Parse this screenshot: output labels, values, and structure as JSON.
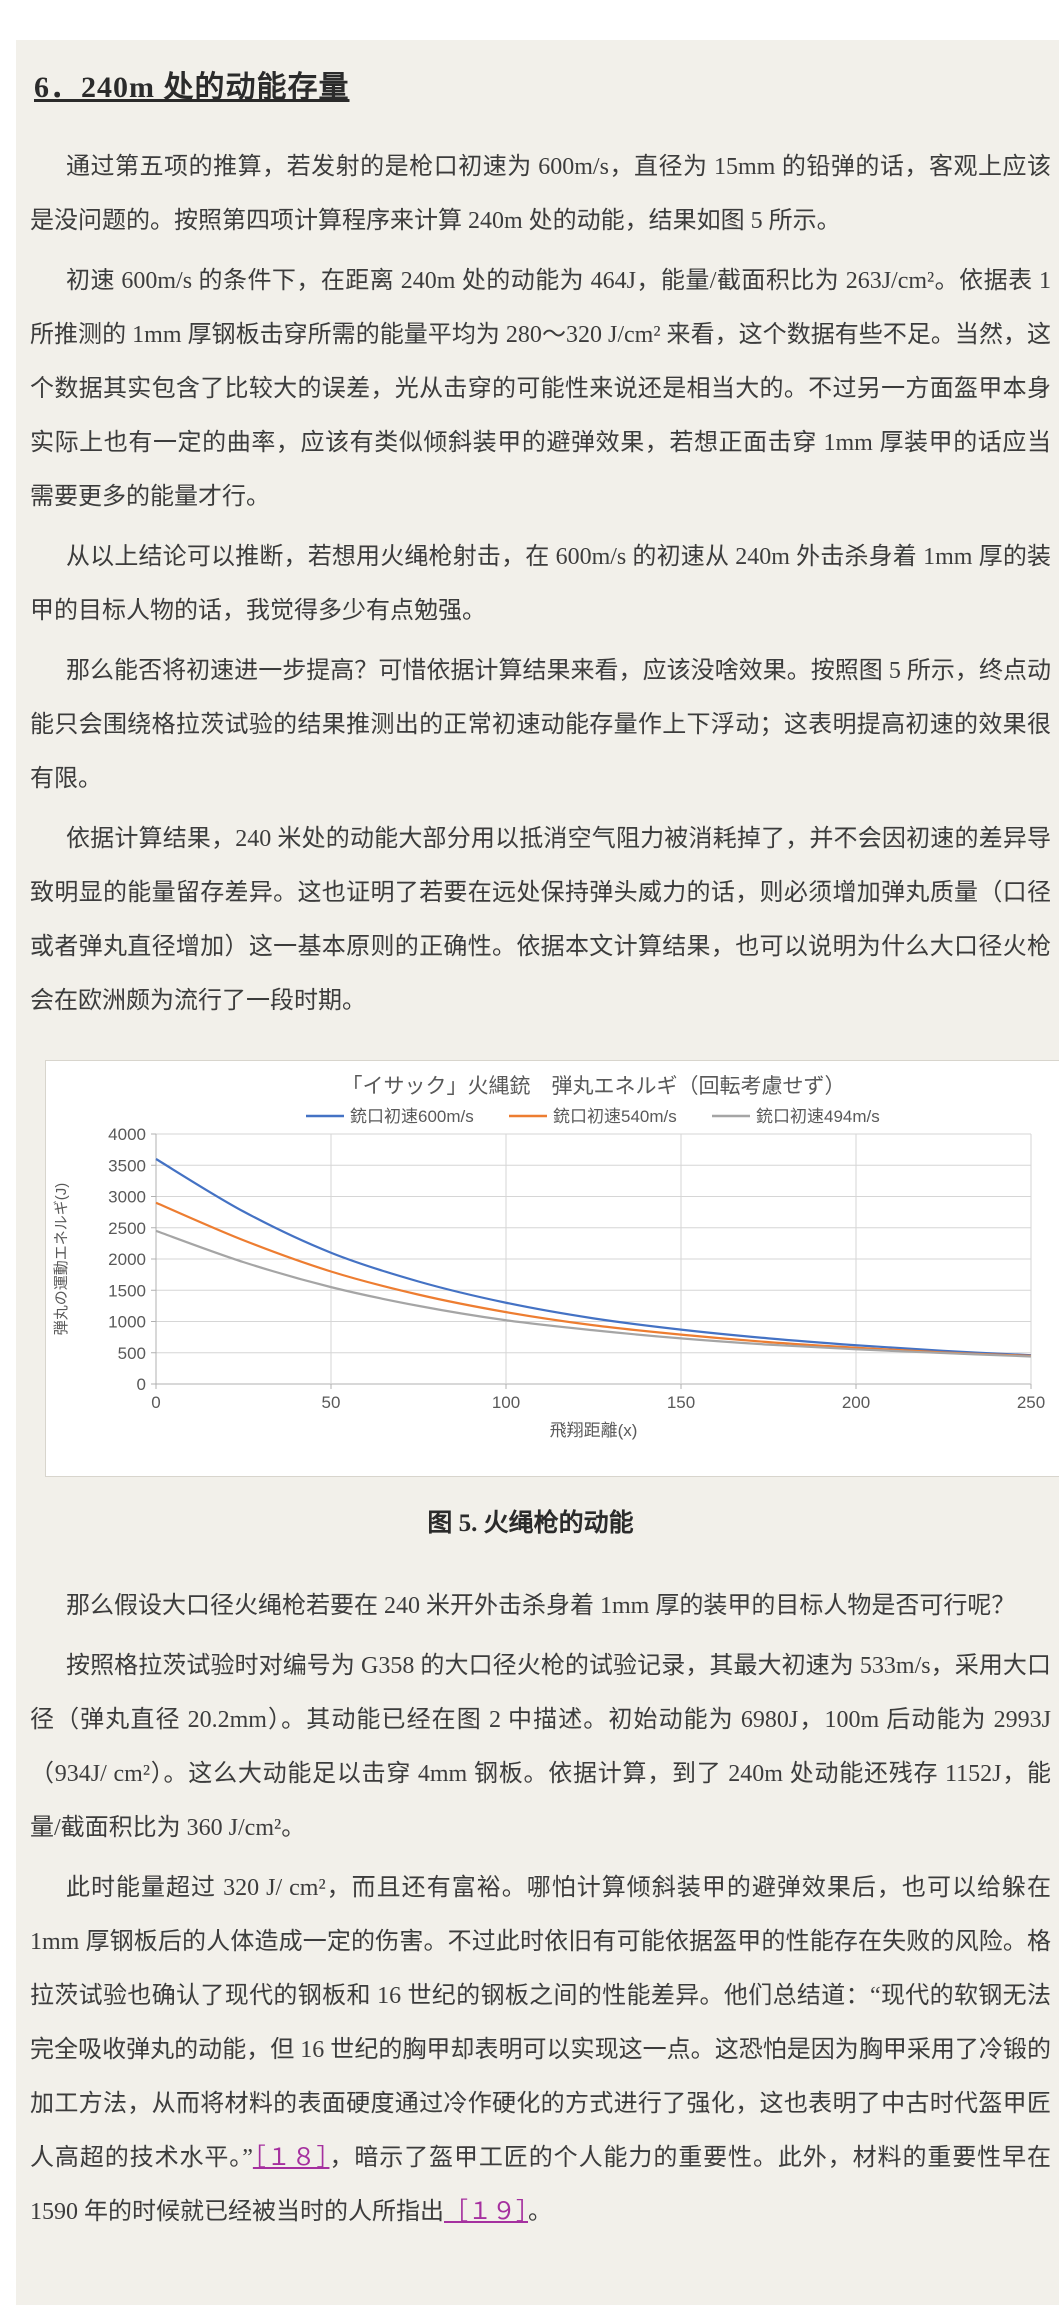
{
  "article": {
    "title": "6．240m 处的动能存量",
    "paragraphs_before_figure": [
      "通过第五项的推算，若发射的是枪口初速为 600m/s，直径为 15mm 的铅弹的话，客观上应该是没问题的。按照第四项计算程序来计算 240m 处的动能，结果如图 5 所示。",
      "初速 600m/s 的条件下，在距离 240m 处的动能为 464J，能量/截面积比为 263J/cm²。依据表 1 所推测的 1mm 厚钢板击穿所需的能量平均为 280～320 J/cm² 来看，这个数据有些不足。当然，这个数据其实包含了比较大的误差，光从击穿的可能性来说还是相当大的。不过另一方面盔甲本身实际上也有一定的曲率，应该有类似倾斜装甲的避弹效果，若想正面击穿 1mm 厚装甲的话应当需要更多的能量才行。",
      "从以上结论可以推断，若想用火绳枪射击，在 600m/s 的初速从 240m 外击杀身着 1mm 厚的装甲的目标人物的话，我觉得多少有点勉强。",
      "那么能否将初速进一步提高？可惜依据计算结果来看，应该没啥效果。按照图 5 所示，终点动能只会围绕格拉茨试验的结果推测出的正常初速动能存量作上下浮动；这表明提高初速的效果很有限。",
      "依据计算结果，240 米处的动能大部分用以抵消空气阻力被消耗掉了，并不会因初速的差异导致明显的能量留存差异。这也证明了若要在远处保持弹头威力的话，则必须增加弹丸质量（口径或者弹丸直径增加）这一基本原则的正确性。依据本文计算结果，也可以说明为什么大口径火枪会在欧洲颇为流行了一段时期。"
    ],
    "figure_caption": "图 5. 火绳枪的动能",
    "paragraphs_after_figure": [
      "那么假设大口径火绳枪若要在 240 米开外击杀身着 1mm 厚的装甲的目标人物是否可行呢？",
      "按照格拉茨试验时对编号为 G358 的大口径火枪的试验记录，其最大初速为 533m/s，采用大口径（弹丸直径 20.2mm）。其动能已经在图 2 中描述。初始动能为 6980J，100m 后动能为 2993J（934J/ cm²）。这么大动能足以击穿 4mm 钢板。依据计算，到了 240m 处动能还残存 1152J，能量/截面积比为 360 J/cm²。"
    ],
    "last_paragraph": {
      "before_ref18": "此时能量超过 320 J/ cm²，而且还有富裕。哪怕计算倾斜装甲的避弹效果后，也可以给躲在 1mm 厚钢板后的人体造成一定的伤害。不过此时依旧有可能依据盔甲的性能存在失败的风险。格拉茨试验也确认了现代的钢板和 16 世纪的钢板之间的性能差异。他们总结道：“现代的软钢无法完全吸收弹丸的动能，但 16 世纪的胸甲却表明可以实现这一点。这恐怕是因为胸甲采用了冷锻的加工方法，从而将材料的表面硬度通过冷作硬化的方式进行了强化，这也表明了中古时代盔甲匠人高超的技术水平。”",
      "ref18": "［１８］",
      "between_refs": "，暗示了盔甲工匠的个人能力的重要性。此外，材料的重要性早在 1590 年的时候就已经被当时的人所指出",
      "ref19": "［１９］",
      "after_ref19": "。"
    },
    "colors": {
      "page_panel": "#f2f0ea",
      "link": "#a5309f",
      "text": "#3c3c3c"
    }
  },
  "chart_data": {
    "type": "line",
    "title": "「イサック」火縄銃　弾丸エネルギ（回転考慮せず）",
    "xlabel": "飛翔距離(x)",
    "ylabel": "弾丸の運動エネルギ(J)",
    "x": [
      0,
      25,
      50,
      75,
      100,
      125,
      150,
      175,
      200,
      225,
      250
    ],
    "series": [
      {
        "name": "銃口初速600m/s",
        "color": "#4472c4",
        "values": [
          3600,
          2760,
          2100,
          1640,
          1300,
          1050,
          870,
          730,
          620,
          530,
          460
        ]
      },
      {
        "name": "銃口初速540m/s",
        "color": "#ed7d31",
        "values": [
          2900,
          2300,
          1800,
          1430,
          1150,
          940,
          790,
          670,
          580,
          505,
          450
        ]
      },
      {
        "name": "銃口初速494m/s",
        "color": "#a5a5a5",
        "values": [
          2450,
          1950,
          1550,
          1250,
          1020,
          860,
          730,
          630,
          555,
          495,
          440
        ]
      }
    ],
    "xticks": [
      0,
      50,
      100,
      150,
      200,
      250
    ],
    "yticks": [
      0,
      500,
      1000,
      1500,
      2000,
      2500,
      3000,
      3500,
      4000
    ],
    "xlim": [
      0,
      250
    ],
    "ylim": [
      0,
      4000
    ],
    "grid": true,
    "legend_position": "top",
    "styles": {
      "grid_color": "#d6d6d6",
      "axis_color": "#b0b0b0",
      "tick_text_color": "#595959",
      "title_color": "#595959"
    }
  }
}
